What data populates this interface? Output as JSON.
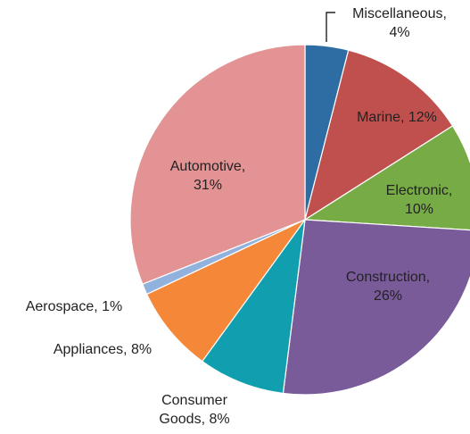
{
  "chart_data": {
    "type": "pie",
    "slices": [
      {
        "label": "Miscellaneous",
        "value": 4,
        "text": [
          "Miscellaneous,",
          "4%"
        ],
        "color": "#2e6da4"
      },
      {
        "label": "Marine",
        "value": 12,
        "text": [
          "Marine, 12%"
        ],
        "color": "#c0504d"
      },
      {
        "label": "Electronic",
        "value": 10,
        "text": [
          "Electronic,",
          "10%"
        ],
        "color": "#77ab46"
      },
      {
        "label": "Construction",
        "value": 26,
        "text": [
          "Construction,",
          "26%"
        ],
        "color": "#7a5b9a"
      },
      {
        "label": "Consumer Goods",
        "value": 8,
        "text": [
          "Consumer",
          "Goods, 8%"
        ],
        "color": "#119fb0"
      },
      {
        "label": "Appliances",
        "value": 8,
        "text": [
          "Appliances, 8%"
        ],
        "color": "#f48838"
      },
      {
        "label": "Aerospace",
        "value": 1,
        "text": [
          "Aerospace, 1%"
        ],
        "color": "#90b2dd"
      },
      {
        "label": "Automotive",
        "value": 31,
        "text": [
          "Automotive,",
          "31%"
        ],
        "color": "#e39393"
      }
    ]
  }
}
